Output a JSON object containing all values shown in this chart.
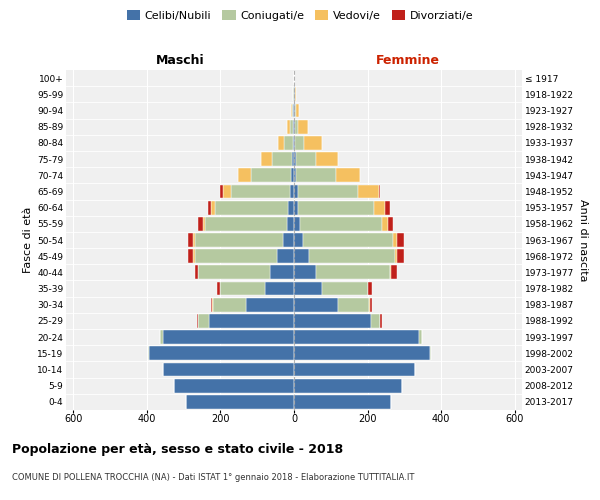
{
  "age_groups": [
    "0-4",
    "5-9",
    "10-14",
    "15-19",
    "20-24",
    "25-29",
    "30-34",
    "35-39",
    "40-44",
    "45-49",
    "50-54",
    "55-59",
    "60-64",
    "65-69",
    "70-74",
    "75-79",
    "80-84",
    "85-89",
    "90-94",
    "95-99",
    "100+"
  ],
  "birth_years": [
    "2013-2017",
    "2008-2012",
    "2003-2007",
    "1998-2002",
    "1993-1997",
    "1988-1992",
    "1983-1987",
    "1978-1982",
    "1973-1977",
    "1968-1972",
    "1963-1967",
    "1958-1962",
    "1953-1957",
    "1948-1952",
    "1943-1947",
    "1938-1942",
    "1933-1937",
    "1928-1932",
    "1923-1927",
    "1918-1922",
    "≤ 1917"
  ],
  "maschi_celibe": [
    295,
    325,
    355,
    395,
    355,
    230,
    130,
    80,
    65,
    45,
    30,
    18,
    15,
    12,
    8,
    5,
    3,
    2,
    2,
    1,
    0
  ],
  "maschi_coniugato": [
    0,
    0,
    0,
    2,
    10,
    30,
    90,
    120,
    195,
    225,
    240,
    225,
    200,
    160,
    110,
    55,
    25,
    8,
    3,
    1,
    0
  ],
  "maschi_vedovo": [
    0,
    0,
    0,
    0,
    0,
    0,
    2,
    2,
    2,
    5,
    5,
    5,
    10,
    20,
    35,
    30,
    15,
    8,
    2,
    1,
    0
  ],
  "maschi_divorziato": [
    0,
    0,
    0,
    0,
    0,
    5,
    5,
    8,
    8,
    12,
    12,
    12,
    8,
    8,
    0,
    0,
    0,
    0,
    0,
    0,
    0
  ],
  "femmine_celibe": [
    265,
    295,
    330,
    370,
    340,
    210,
    120,
    75,
    60,
    40,
    25,
    15,
    12,
    10,
    5,
    5,
    2,
    2,
    3,
    2,
    0
  ],
  "femmine_coniugato": [
    0,
    0,
    0,
    2,
    8,
    25,
    85,
    125,
    200,
    235,
    245,
    225,
    205,
    165,
    110,
    55,
    25,
    10,
    3,
    1,
    0
  ],
  "femmine_vedova": [
    0,
    0,
    0,
    0,
    0,
    0,
    2,
    2,
    5,
    5,
    10,
    15,
    30,
    55,
    65,
    60,
    50,
    25,
    8,
    3,
    0
  ],
  "femmine_divorziata": [
    0,
    0,
    0,
    0,
    0,
    5,
    5,
    10,
    15,
    20,
    20,
    15,
    15,
    5,
    0,
    0,
    0,
    0,
    0,
    0,
    0
  ],
  "colors": {
    "celibe": "#4472a8",
    "coniugato": "#b5c9a0",
    "vedovo": "#f5c060",
    "divorziato": "#c0201a"
  },
  "xlim": 620,
  "title": "Popolazione per età, sesso e stato civile - 2018",
  "subtitle": "COMUNE DI POLLENA TROCCHIA (NA) - Dati ISTAT 1° gennaio 2018 - Elaborazione TUTTITALIA.IT",
  "ylabel_left": "Fasce di età",
  "ylabel_right": "Anni di nascita",
  "xlabel_maschi": "Maschi",
  "xlabel_femmine": "Femmine"
}
